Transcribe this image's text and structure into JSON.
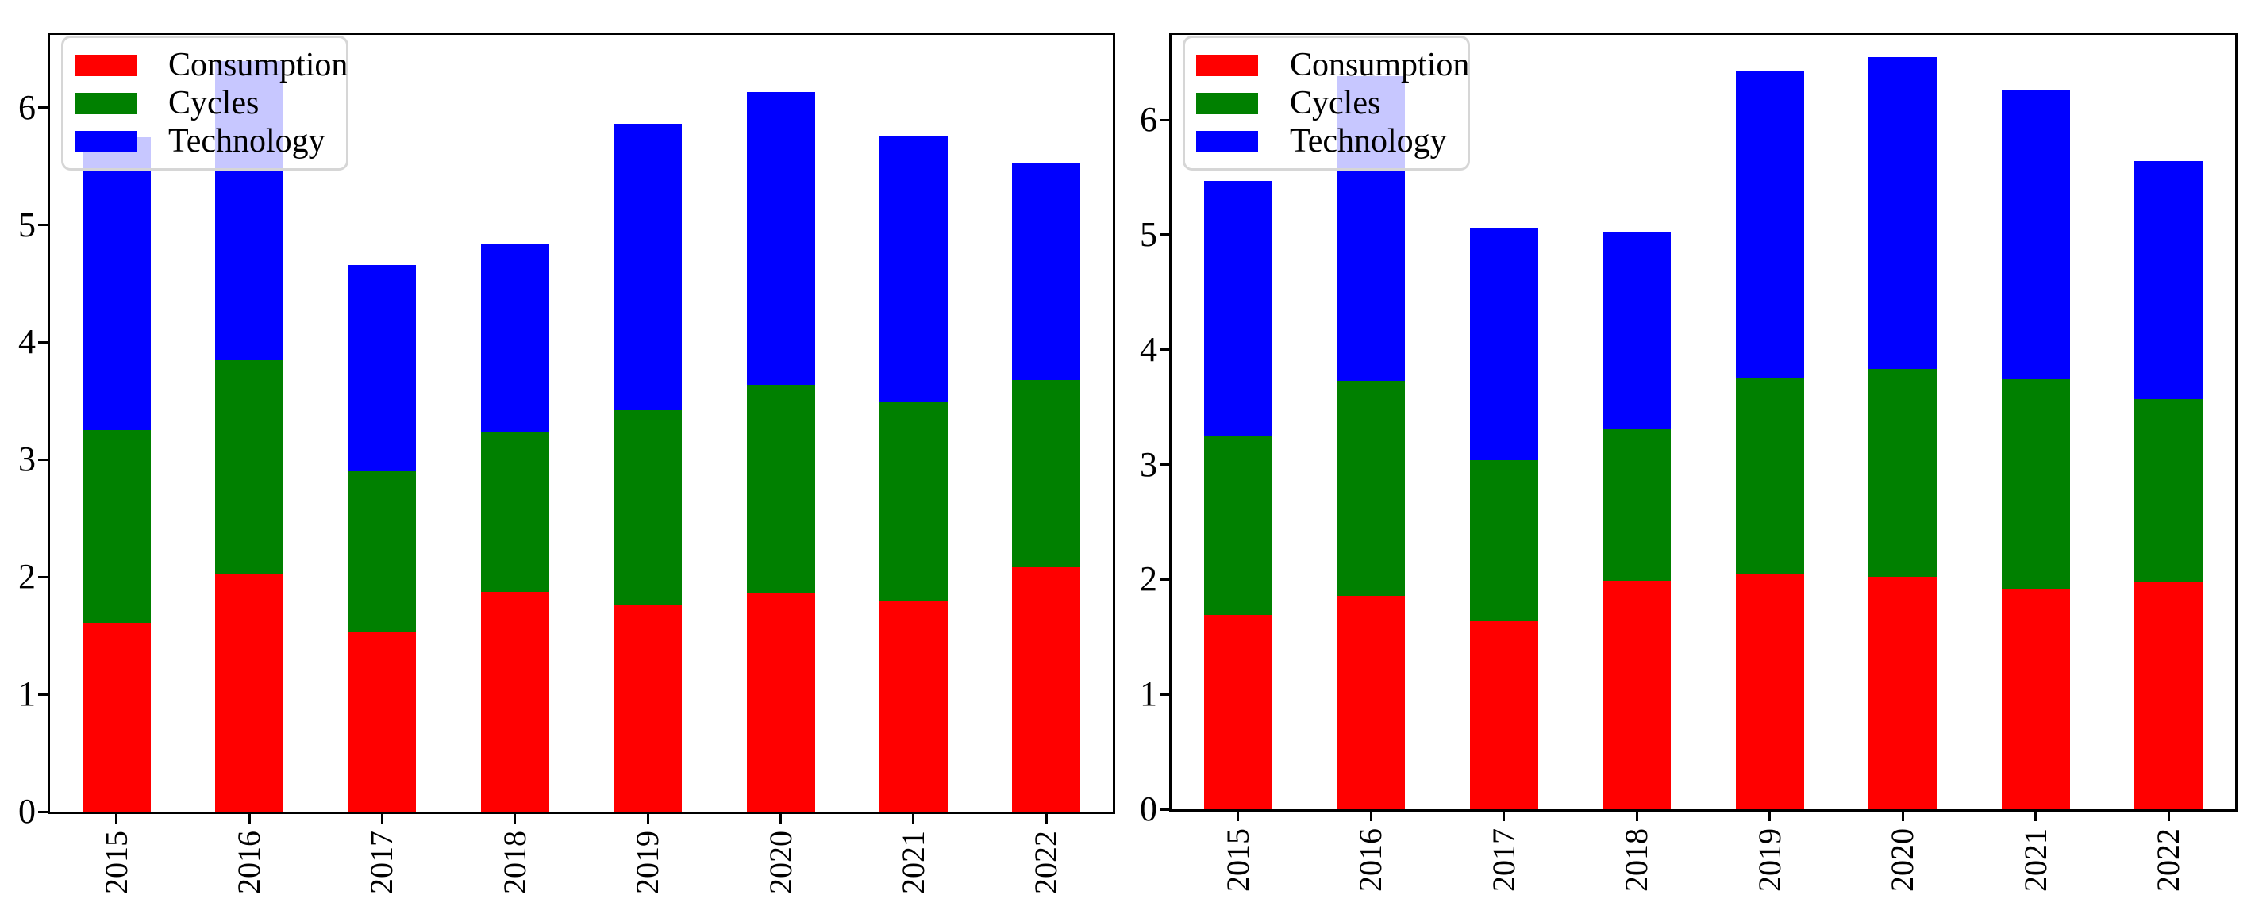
{
  "figure": {
    "background": "#ffffff",
    "description": "Two side-by-side stacked bar charts of Consumption, Cycles and Technology by year"
  },
  "colors": {
    "consumption": "#ff0000",
    "cycles": "#008000",
    "technology": "#0000ff",
    "axis": "#000000",
    "legend_face": "rgba(255,255,255,0.78)",
    "legend_edge": "#d6d6d6"
  },
  "chart_data": [
    {
      "type": "bar",
      "stacked": true,
      "panel": "left",
      "categories": [
        "2015",
        "2016",
        "2017",
        "2018",
        "2019",
        "2020",
        "2021",
        "2022"
      ],
      "series": [
        {
          "name": "Consumption",
          "color": "#ff0000",
          "values": [
            1.61,
            2.03,
            1.53,
            1.87,
            1.76,
            1.86,
            1.8,
            2.08
          ]
        },
        {
          "name": "Cycles",
          "color": "#008000",
          "values": [
            1.64,
            1.82,
            1.37,
            1.36,
            1.66,
            1.78,
            1.69,
            1.6
          ]
        },
        {
          "name": "Technology",
          "color": "#0000ff",
          "values": [
            2.5,
            2.55,
            1.76,
            1.61,
            2.44,
            2.49,
            2.27,
            1.85
          ]
        }
      ],
      "stack_totals": [
        5.75,
        6.4,
        4.66,
        4.84,
        5.86,
        6.13,
        5.76,
        5.53
      ],
      "yticks": [
        "0",
        "1",
        "2",
        "3",
        "4",
        "5",
        "6"
      ],
      "ylim": [
        0,
        6.62
      ],
      "grid": false,
      "legend_position": "upper left",
      "xtick_rotation": 90,
      "bar_width_frac": 0.5
    },
    {
      "type": "bar",
      "stacked": true,
      "panel": "right",
      "categories": [
        "2015",
        "2016",
        "2017",
        "2018",
        "2019",
        "2020",
        "2021",
        "2022"
      ],
      "series": [
        {
          "name": "Consumption",
          "color": "#ff0000",
          "values": [
            1.69,
            1.86,
            1.64,
            1.99,
            2.05,
            2.02,
            1.92,
            1.98
          ]
        },
        {
          "name": "Cycles",
          "color": "#008000",
          "values": [
            1.56,
            1.87,
            1.4,
            1.32,
            1.7,
            1.81,
            1.82,
            1.59
          ]
        },
        {
          "name": "Technology",
          "color": "#0000ff",
          "values": [
            2.22,
            2.65,
            2.02,
            1.72,
            2.68,
            2.72,
            2.52,
            2.07
          ]
        }
      ],
      "stack_totals": [
        5.47,
        6.38,
        5.06,
        5.03,
        6.43,
        6.55,
        6.26,
        5.64
      ],
      "yticks": [
        "0",
        "1",
        "2",
        "3",
        "4",
        "5",
        "6"
      ],
      "ylim": [
        0,
        6.74
      ],
      "grid": false,
      "legend_position": "upper left",
      "xtick_rotation": 90,
      "bar_width_frac": 0.5
    }
  ]
}
